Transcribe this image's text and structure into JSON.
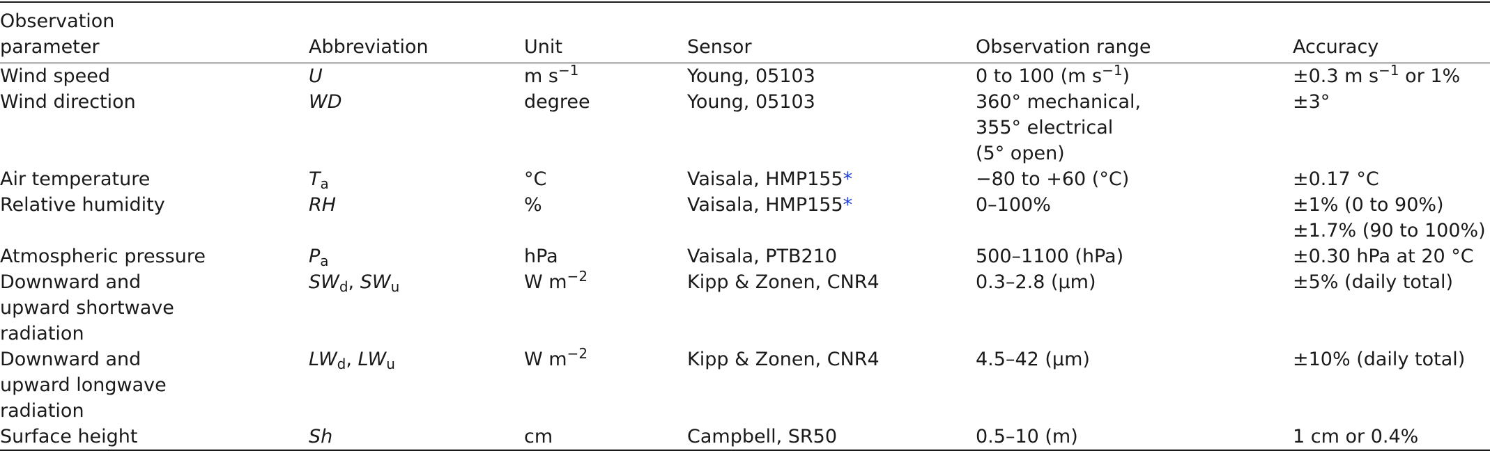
{
  "table": {
    "headers": {
      "parameter_line1": "Observation",
      "parameter_line2": "parameter",
      "abbreviation": "Abbreviation",
      "unit": "Unit",
      "sensor": "Sensor",
      "range": "Observation range",
      "accuracy": "Accuracy"
    },
    "rows": [
      {
        "parameter": "Wind speed",
        "abbr": "U",
        "unit_base": "m s",
        "unit_sup": "−1",
        "sensor": "Young, 05103",
        "range_pre": "0 to 100 (m s",
        "range_sup": "−1",
        "range_post": ")",
        "acc_pre": "±0.3 m s",
        "acc_sup": "−1",
        "acc_post": " or 1%"
      },
      {
        "parameter": "Wind direction",
        "abbr": "WD",
        "unit": "degree",
        "sensor": "Young, 05103",
        "range_lines": [
          "360° mechanical,",
          "355° electrical",
          "(5° open)"
        ],
        "accuracy": "±3°"
      },
      {
        "parameter": "Air temperature",
        "abbr_base": "T",
        "abbr_sub": "a",
        "unit": "°C",
        "sensor": "Vaisala, HMP155",
        "sensor_note": "*",
        "range": "−80 to +60 (°C)",
        "accuracy": "±0.17 °C"
      },
      {
        "parameter": "Relative humidity",
        "abbr": "RH",
        "unit": "%",
        "sensor": "Vaisala, HMP155",
        "sensor_note": "*",
        "range": "0–100%",
        "accuracy_lines": [
          "±1% (0 to 90%)",
          "±1.7% (90 to 100%)"
        ]
      },
      {
        "parameter": "Atmospheric pressure",
        "abbr_base": "P",
        "abbr_sub": "a",
        "unit": "hPa",
        "sensor": "Vaisala, PTB210",
        "range": "500–1100 (hPa)",
        "accuracy": "±0.30 hPa at 20 °C"
      },
      {
        "parameter_lines": [
          "Downward and",
          "upward shortwave",
          "radiation"
        ],
        "abbr1_base": "SW",
        "abbr1_sub": "d",
        "abbr_sep": ", ",
        "abbr2_base": "SW",
        "abbr2_sub": "u",
        "unit_base": "W m",
        "unit_sup": "−2",
        "sensor": "Kipp & Zonen, CNR4",
        "range": "0.3–2.8 (μm)",
        "accuracy": "±5% (daily total)"
      },
      {
        "parameter_lines": [
          "Downward and",
          "upward longwave",
          "radiation"
        ],
        "abbr1_base": "LW",
        "abbr1_sub": "d",
        "abbr_sep": ", ",
        "abbr2_base": "LW",
        "abbr2_sub": "u",
        "unit_base": "W m",
        "unit_sup": "−2",
        "sensor": "Kipp & Zonen, CNR4",
        "range": "4.5–42 (μm)",
        "accuracy": "±10% (daily total)"
      },
      {
        "parameter": "Surface height",
        "abbr": "Sh",
        "unit": "cm",
        "sensor": "Campbell, SR50",
        "range": "0.5–10 (m)",
        "accuracy": "1 cm or 0.4%"
      }
    ]
  }
}
